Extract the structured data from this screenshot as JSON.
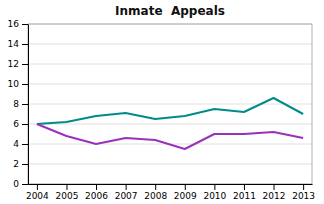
{
  "chart_data": {
    "type": "line",
    "title": "Inmate  Appeals",
    "x": [
      2004,
      2005,
      2006,
      2007,
      2008,
      2009,
      2010,
      2011,
      2012,
      2013
    ],
    "xlim": [
      2003.7,
      2013.3
    ],
    "xticks": [
      2004,
      2005,
      2006,
      2007,
      2008,
      2009,
      2010,
      2011,
      2012,
      2013
    ],
    "ylim": [
      0,
      16
    ],
    "yticks": [
      0,
      2,
      4,
      6,
      8,
      10,
      12,
      14,
      16
    ],
    "grid": true,
    "series": [
      {
        "color": "#008B8B",
        "values": [
          6.0,
          6.2,
          6.8,
          7.1,
          6.5,
          6.8,
          7.5,
          7.2,
          8.6,
          7.0
        ]
      },
      {
        "color": "#9B30BB",
        "values": [
          6.0,
          4.8,
          4.0,
          4.6,
          4.4,
          3.5,
          5.0,
          5.0,
          5.2,
          4.6
        ]
      }
    ]
  }
}
